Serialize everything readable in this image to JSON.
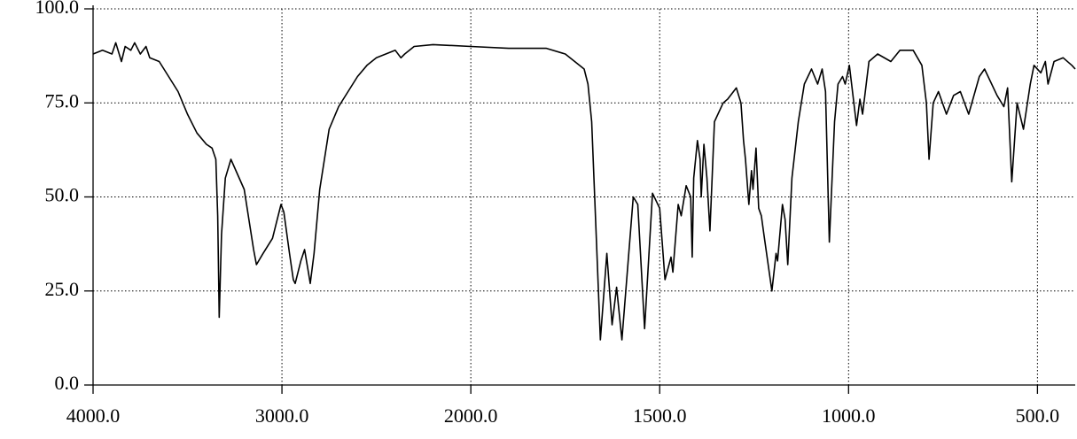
{
  "chart_data": {
    "type": "line",
    "x": [
      4000,
      3950,
      3900,
      3880,
      3850,
      3830,
      3800,
      3780,
      3750,
      3720,
      3700,
      3650,
      3550,
      3500,
      3450,
      3400,
      3370,
      3350,
      3340,
      3332,
      3320,
      3300,
      3270,
      3200,
      3150,
      3135,
      3100,
      3050,
      3005,
      2990,
      2960,
      2940,
      2930,
      2900,
      2880,
      2860,
      2850,
      2830,
      2800,
      2750,
      2700,
      2600,
      2550,
      2500,
      2400,
      2370,
      2350,
      2300,
      2200,
      2000,
      1900,
      1800,
      1750,
      1700,
      1690,
      1680,
      1657,
      1640,
      1626,
      1614,
      1600,
      1570,
      1558,
      1540,
      1519,
      1500,
      1486,
      1470,
      1465,
      1451,
      1443,
      1430,
      1418,
      1414,
      1410,
      1400,
      1393,
      1390,
      1383,
      1375,
      1367,
      1355,
      1332,
      1320,
      1297,
      1285,
      1278,
      1273,
      1264,
      1257,
      1253,
      1245,
      1238,
      1231,
      1224,
      1203,
      1192,
      1188,
      1175,
      1168,
      1161,
      1150,
      1133,
      1117,
      1098,
      1082,
      1070,
      1061,
      1051,
      1037,
      1028,
      1016,
      1009,
      998,
      979,
      970,
      963,
      946,
      923,
      888,
      864,
      829,
      806,
      794,
      787,
      776,
      762,
      741,
      722,
      704,
      682,
      654,
      640,
      607,
      589,
      579,
      568,
      554,
      537,
      519,
      509,
      491,
      479,
      472,
      456,
      432,
      409,
      400
    ],
    "values": [
      88,
      89,
      88,
      91,
      86,
      90,
      89,
      91,
      88,
      90,
      87,
      86,
      78,
      72,
      67,
      64,
      63,
      60,
      45,
      18,
      40,
      55,
      60,
      52,
      36,
      32,
      35,
      39,
      48,
      46,
      35,
      28,
      27,
      33,
      36,
      30,
      27,
      35,
      52,
      68,
      74,
      82,
      85,
      87,
      89,
      87,
      88,
      90,
      90.5,
      90,
      89.5,
      89.5,
      88,
      84,
      80,
      70,
      12,
      35,
      16,
      26,
      12,
      50,
      48,
      15,
      51,
      47,
      28,
      34,
      30,
      48,
      45,
      53,
      50,
      34,
      55,
      65,
      60,
      50,
      64,
      55,
      41,
      70,
      75,
      76,
      79,
      75,
      65,
      60,
      48,
      57,
      52,
      63,
      47,
      45,
      40,
      25,
      35,
      33,
      48,
      44,
      32,
      55,
      70,
      80,
      84,
      80,
      84,
      78,
      38,
      70,
      80,
      82,
      80,
      85,
      69,
      76,
      72,
      86,
      88,
      86,
      89,
      89,
      85,
      75,
      60,
      75,
      78,
      72,
      77,
      78,
      72,
      82,
      84,
      77,
      74,
      79,
      54,
      75,
      68,
      80,
      85,
      83,
      86,
      80,
      86,
      87,
      85,
      84
    ],
    "color": "#000000",
    "xlim": [
      4000,
      400
    ],
    "ylim": [
      0,
      100
    ],
    "x_scale": "piecewise",
    "xticks": [
      {
        "value": 4000,
        "label": "4000.0"
      },
      {
        "value": 3000,
        "label": "3000.0"
      },
      {
        "value": 2000,
        "label": "2000.0"
      },
      {
        "value": 1500,
        "label": "1500.0"
      },
      {
        "value": 1000,
        "label": "1000.0"
      },
      {
        "value": 500,
        "label": "500.0"
      }
    ],
    "yticks": [
      {
        "value": 0,
        "label": "0.0"
      },
      {
        "value": 25,
        "label": "25.0"
      },
      {
        "value": 50,
        "label": "50.0"
      },
      {
        "value": 75,
        "label": "75.0"
      },
      {
        "value": 100,
        "label": "100.0"
      }
    ],
    "grid": true
  }
}
